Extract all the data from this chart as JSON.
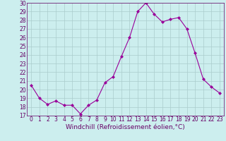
{
  "x": [
    0,
    1,
    2,
    3,
    4,
    5,
    6,
    7,
    8,
    9,
    10,
    11,
    12,
    13,
    14,
    15,
    16,
    17,
    18,
    19,
    20,
    21,
    22,
    23
  ],
  "y": [
    20.5,
    19.0,
    18.3,
    18.7,
    18.2,
    18.2,
    17.2,
    18.2,
    18.8,
    20.8,
    21.5,
    23.8,
    26.0,
    29.0,
    30.0,
    28.7,
    27.8,
    28.1,
    28.3,
    27.0,
    24.2,
    21.2,
    20.3,
    19.6
  ],
  "line_color": "#990099",
  "marker": "D",
  "marker_size": 2.0,
  "bg_color": "#cceeee",
  "grid_color": "#aacccc",
  "xlabel": "Windchill (Refroidissement éolien,°C)",
  "xlim": [
    -0.5,
    23.5
  ],
  "ylim": [
    17,
    30
  ],
  "yticks": [
    17,
    18,
    19,
    20,
    21,
    22,
    23,
    24,
    25,
    26,
    27,
    28,
    29,
    30
  ],
  "xticks": [
    0,
    1,
    2,
    3,
    4,
    5,
    6,
    7,
    8,
    9,
    10,
    11,
    12,
    13,
    14,
    15,
    16,
    17,
    18,
    19,
    20,
    21,
    22,
    23
  ],
  "tick_fontsize": 5.5,
  "xlabel_fontsize": 6.5,
  "label_color": "#660066",
  "linewidth": 0.8
}
